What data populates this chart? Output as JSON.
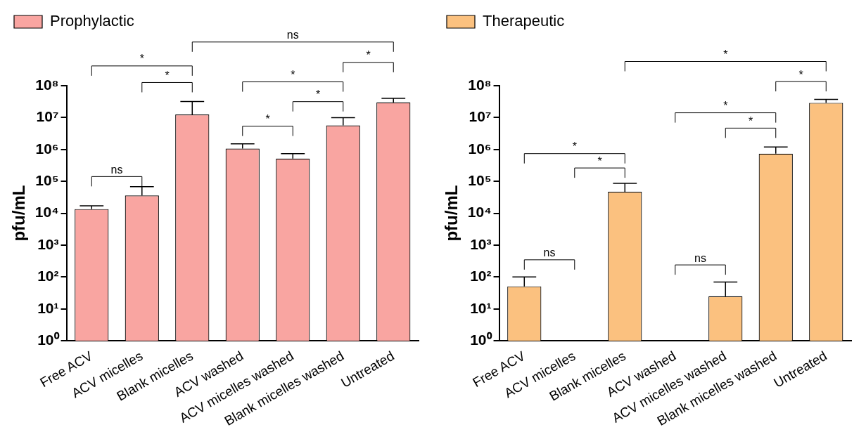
{
  "chart_data": [
    {
      "type": "bar",
      "ylabel": "pfu/mL",
      "log": "y",
      "legend": "top left",
      "grid": false,
      "categories": [
        "Free ACV",
        "ACV micelles",
        "Blank micelles",
        "ACV washed",
        "ACV micelles washed",
        "Blank micelles washed",
        "Untreated"
      ],
      "series": [
        {
          "name": "Prophylactic",
          "color": "#f9a5a1",
          "values": [
            13500,
            36000,
            12500000,
            1070000,
            520000,
            5700000,
            30000000
          ],
          "errors": [
            [
              13500,
              17000
            ],
            [
              36000,
              68000
            ],
            [
              12500000,
              32000000
            ],
            [
              1070000,
              1500000
            ],
            [
              520000,
              740000
            ],
            [
              5700000,
              10000000
            ],
            [
              30000000,
              40000000
            ]
          ]
        }
      ],
      "ylim": [
        1,
        100000000
      ],
      "yticks": [
        {
          "value": 1,
          "label": "10⁰"
        },
        {
          "value": 10,
          "label": "10¹"
        },
        {
          "value": 100,
          "label": "10²"
        },
        {
          "value": 1000,
          "label": "10³"
        },
        {
          "value": 10000,
          "label": "10⁴"
        },
        {
          "value": 100000,
          "label": "10⁵"
        },
        {
          "value": 1000000,
          "label": "10⁶"
        },
        {
          "value": 10000000,
          "label": "10⁷"
        },
        {
          "value": 100000000,
          "label": "10⁸"
        }
      ],
      "annotations": [
        "ns",
        "*",
        "*",
        "ns",
        "*",
        "*",
        "*",
        "*"
      ]
    },
    {
      "type": "bar",
      "ylabel": "pfu/mL",
      "log": "y",
      "legend": "top left",
      "grid": false,
      "categories": [
        "Free ACV",
        "ACV micelles",
        "Blank micelles",
        "ACV washed",
        "ACV micelles washed",
        "Blank micelles washed",
        "Untreated"
      ],
      "series": [
        {
          "name": "Therapeutic",
          "color": "#fbc17f",
          "values": [
            51,
            null,
            47000,
            null,
            25,
            740000,
            29000000
          ],
          "errors": [
            [
              51,
              100
            ],
            null,
            [
              47000,
              87000
            ],
            null,
            [
              25,
              70
            ],
            [
              740000,
              1200000
            ],
            [
              29000000,
              37000000
            ]
          ]
        }
      ],
      "ylim": [
        1,
        100000000
      ],
      "yticks": [
        {
          "value": 1,
          "label": "10⁰"
        },
        {
          "value": 10,
          "label": "10¹"
        },
        {
          "value": 100,
          "label": "10²"
        },
        {
          "value": 1000,
          "label": "10³"
        },
        {
          "value": 10000,
          "label": "10⁴"
        },
        {
          "value": 100000,
          "label": "10⁵"
        },
        {
          "value": 1000000,
          "label": "10⁶"
        },
        {
          "value": 10000000,
          "label": "10⁷"
        },
        {
          "value": 100000000,
          "label": "10⁸"
        }
      ],
      "annotations": [
        "ns",
        "*",
        "*",
        "*",
        "ns",
        "*",
        "*",
        "*"
      ]
    }
  ]
}
